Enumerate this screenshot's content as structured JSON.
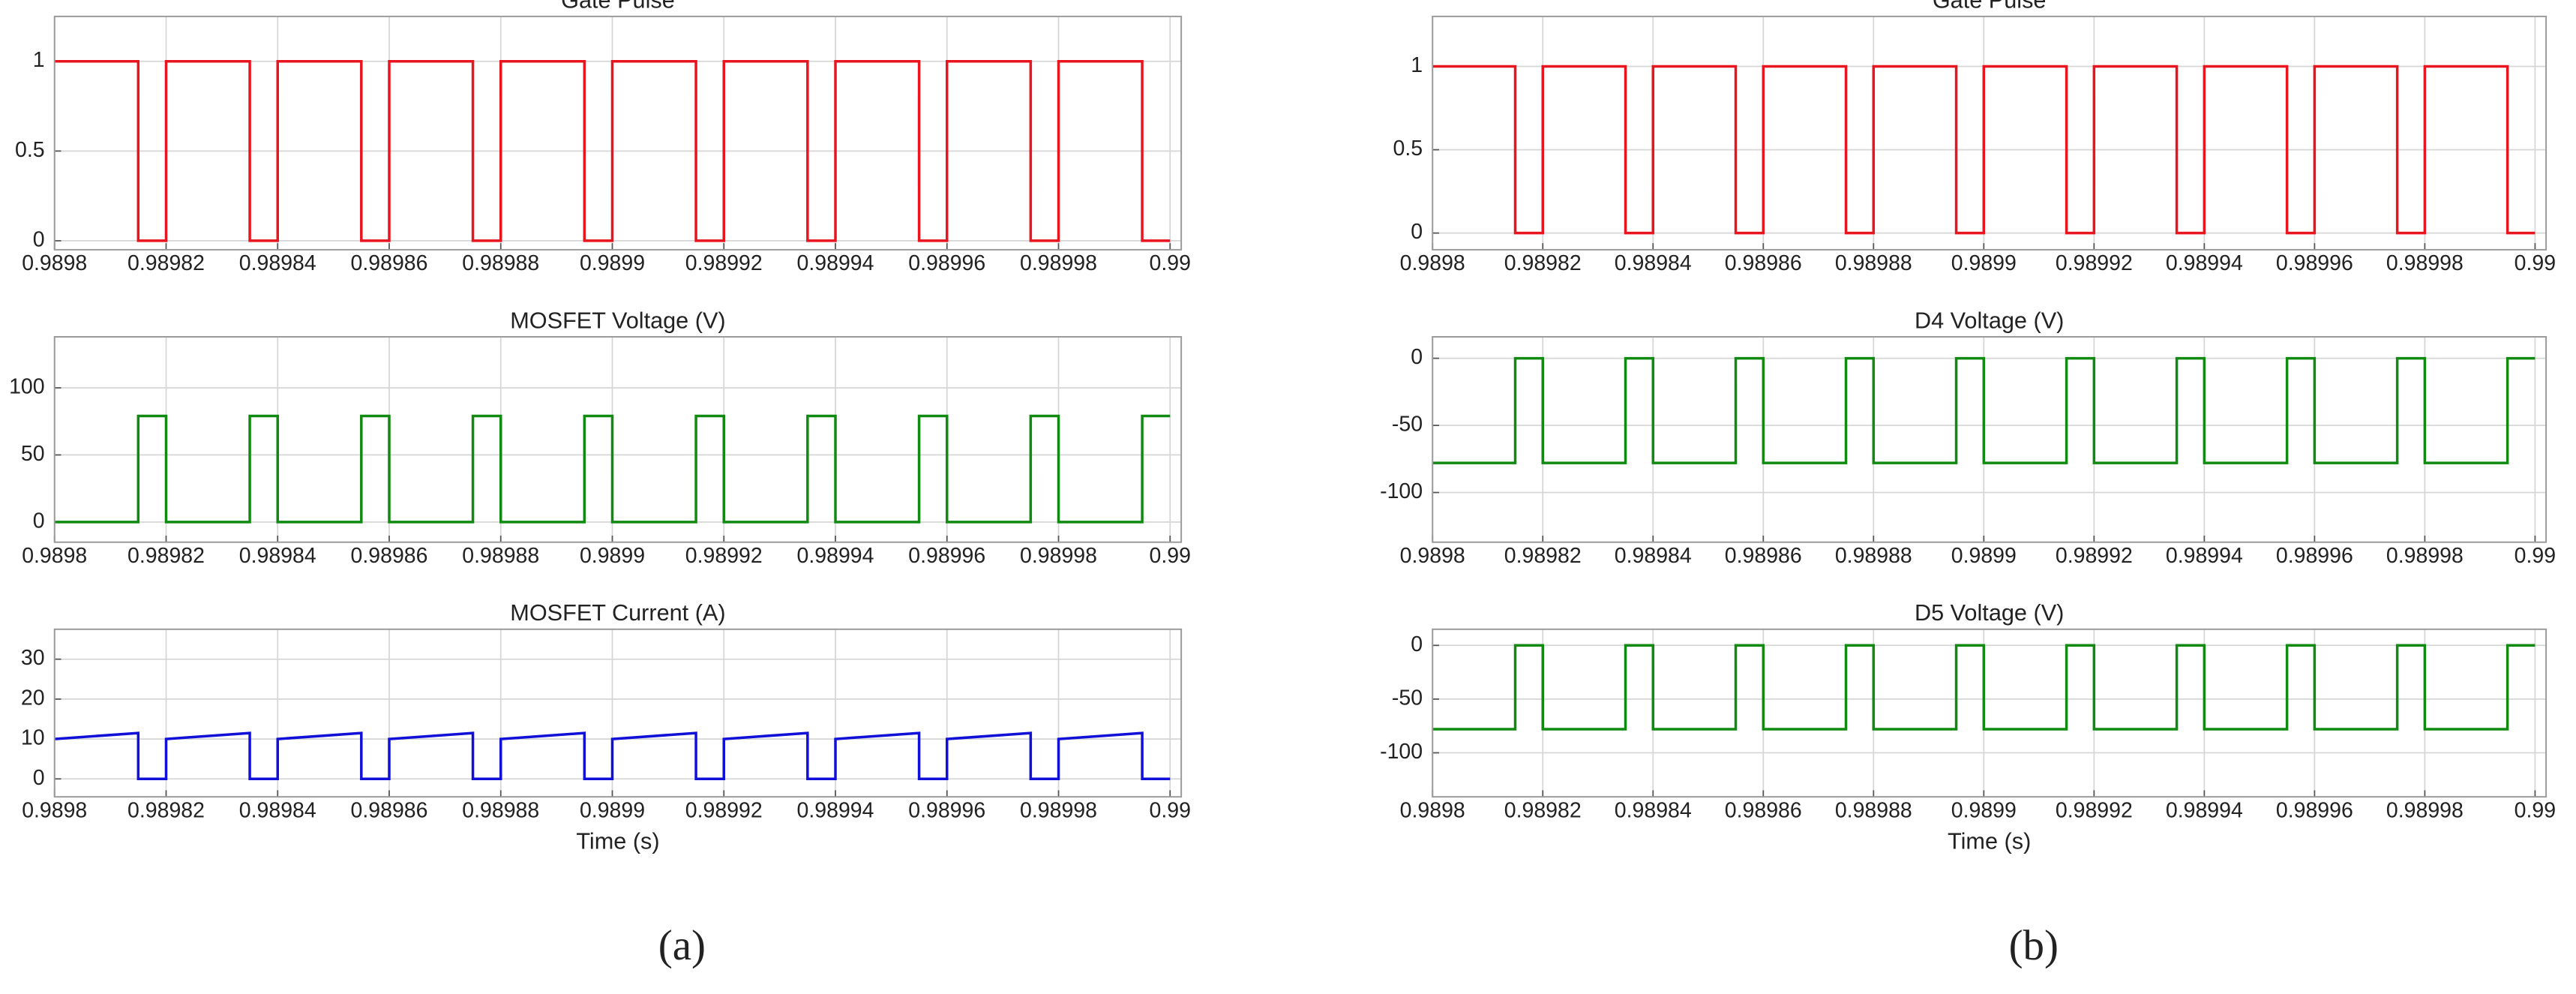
{
  "captions": [
    "(a)",
    "(b)"
  ],
  "chart_data": [
    {
      "type": "line",
      "title": "Gate Pulse",
      "color": "#e8141e",
      "grid": true,
      "x": [
        0.9898,
        0.989815,
        0.989815,
        0.98982,
        0.98982,
        0.989835,
        0.989835,
        0.98984,
        0.98984,
        0.989855,
        0.989855,
        0.98986,
        0.98986,
        0.989875,
        0.989875,
        0.98988,
        0.98988,
        0.989895,
        0.989895,
        0.9899,
        0.9899,
        0.989915,
        0.989915,
        0.98992,
        0.98992,
        0.989935,
        0.989935,
        0.98994,
        0.98994,
        0.989955,
        0.989955,
        0.98996,
        0.98996,
        0.989975,
        0.989975,
        0.98998,
        0.98998,
        0.989995,
        0.989995,
        0.99
      ],
      "values": [
        1,
        1,
        0,
        0,
        1,
        1,
        0,
        0,
        1,
        1,
        0,
        0,
        1,
        1,
        0,
        0,
        1,
        1,
        0,
        0,
        1,
        1,
        0,
        0,
        1,
        1,
        0,
        0,
        1,
        1,
        0,
        0,
        1,
        1,
        0,
        0,
        1,
        1,
        0,
        0
      ],
      "xlim": [
        0.9898,
        0.990002
      ],
      "ylim": [
        -0.05,
        1.25
      ],
      "xticks": [
        0.9898,
        0.98982,
        0.98984,
        0.98986,
        0.98988,
        0.9899,
        0.98992,
        0.98994,
        0.98996,
        0.98998,
        0.99
      ],
      "yticks": [
        0,
        0.5,
        1
      ]
    },
    {
      "type": "line",
      "title": "MOSFET Voltage  (V)",
      "color": "#118a11",
      "grid": true,
      "x": [
        0.9898,
        0.989815,
        0.989815,
        0.98982,
        0.98982,
        0.989835,
        0.989835,
        0.98984,
        0.98984,
        0.989855,
        0.989855,
        0.98986,
        0.98986,
        0.989875,
        0.989875,
        0.98988,
        0.98988,
        0.989895,
        0.989895,
        0.9899,
        0.9899,
        0.989915,
        0.989915,
        0.98992,
        0.98992,
        0.989935,
        0.989935,
        0.98994,
        0.98994,
        0.989955,
        0.989955,
        0.98996,
        0.98996,
        0.989975,
        0.989975,
        0.98998,
        0.98998,
        0.989995,
        0.989995,
        0.99
      ],
      "values": [
        0,
        0,
        79,
        79,
        0,
        0,
        79,
        79,
        0,
        0,
        79,
        79,
        0,
        0,
        79,
        79,
        0,
        0,
        79,
        79,
        0,
        0,
        79,
        79,
        0,
        0,
        79,
        79,
        0,
        0,
        79,
        79,
        0,
        0,
        79,
        79,
        0,
        0,
        79,
        79
      ],
      "xlim": [
        0.9898,
        0.990002
      ],
      "ylim": [
        -15,
        138
      ],
      "xticks": [
        0.9898,
        0.98982,
        0.98984,
        0.98986,
        0.98988,
        0.9899,
        0.98992,
        0.98994,
        0.98996,
        0.98998,
        0.99
      ],
      "yticks": [
        0,
        50,
        100
      ]
    },
    {
      "type": "line",
      "title": "MOSFET Current (A)",
      "xlabel": "Time (s)",
      "color": "#1010d8",
      "grid": true,
      "x": [
        0.9898,
        0.989815,
        0.989815,
        0.98982,
        0.98982,
        0.989835,
        0.989835,
        0.98984,
        0.98984,
        0.989855,
        0.989855,
        0.98986,
        0.98986,
        0.989875,
        0.989875,
        0.98988,
        0.98988,
        0.989895,
        0.989895,
        0.9899,
        0.9899,
        0.989915,
        0.989915,
        0.98992,
        0.98992,
        0.989935,
        0.989935,
        0.98994,
        0.98994,
        0.989955,
        0.989955,
        0.98996,
        0.98996,
        0.989975,
        0.989975,
        0.98998,
        0.98998,
        0.989995,
        0.989995,
        0.99
      ],
      "values": [
        10,
        11.5,
        0,
        0,
        10,
        11.5,
        0,
        0,
        10,
        11.5,
        0,
        0,
        10,
        11.5,
        0,
        0,
        10,
        11.5,
        0,
        0,
        10,
        11.5,
        0,
        0,
        10,
        11.5,
        0,
        0,
        10,
        11.5,
        0,
        0,
        10,
        11.5,
        0,
        0,
        10,
        11.5,
        0,
        0
      ],
      "xlim": [
        0.9898,
        0.990002
      ],
      "ylim": [
        -4.5,
        37.5
      ],
      "xticks": [
        0.9898,
        0.98982,
        0.98984,
        0.98986,
        0.98988,
        0.9899,
        0.98992,
        0.98994,
        0.98996,
        0.98998,
        0.99
      ],
      "yticks": [
        0,
        10,
        20,
        30
      ]
    },
    {
      "type": "line",
      "title": "Gate Pulse",
      "color": "#e8141e",
      "grid": true,
      "x": [
        0.9898,
        0.989815,
        0.989815,
        0.98982,
        0.98982,
        0.989835,
        0.989835,
        0.98984,
        0.98984,
        0.989855,
        0.989855,
        0.98986,
        0.98986,
        0.989875,
        0.989875,
        0.98988,
        0.98988,
        0.989895,
        0.989895,
        0.9899,
        0.9899,
        0.989915,
        0.989915,
        0.98992,
        0.98992,
        0.989935,
        0.989935,
        0.98994,
        0.98994,
        0.989955,
        0.989955,
        0.98996,
        0.98996,
        0.989975,
        0.989975,
        0.98998,
        0.98998,
        0.989995,
        0.989995,
        0.99
      ],
      "values": [
        1,
        1,
        0,
        0,
        1,
        1,
        0,
        0,
        1,
        1,
        0,
        0,
        1,
        1,
        0,
        0,
        1,
        1,
        0,
        0,
        1,
        1,
        0,
        0,
        1,
        1,
        0,
        0,
        1,
        1,
        0,
        0,
        1,
        1,
        0,
        0,
        1,
        1,
        0,
        0
      ],
      "xlim": [
        0.9898,
        0.990002
      ],
      "ylim": [
        -0.1,
        1.3
      ],
      "xticks": [
        0.9898,
        0.98982,
        0.98984,
        0.98986,
        0.98988,
        0.9899,
        0.98992,
        0.98994,
        0.98996,
        0.98998,
        0.99
      ],
      "yticks": [
        0,
        0.5,
        1
      ]
    },
    {
      "type": "line",
      "title": "D4 Voltage (V)",
      "color": "#118a11",
      "grid": true,
      "x": [
        0.9898,
        0.989815,
        0.989815,
        0.98982,
        0.98982,
        0.989835,
        0.989835,
        0.98984,
        0.98984,
        0.989855,
        0.989855,
        0.98986,
        0.98986,
        0.989875,
        0.989875,
        0.98988,
        0.98988,
        0.989895,
        0.989895,
        0.9899,
        0.9899,
        0.989915,
        0.989915,
        0.98992,
        0.98992,
        0.989935,
        0.989935,
        0.98994,
        0.98994,
        0.989955,
        0.989955,
        0.98996,
        0.98996,
        0.989975,
        0.989975,
        0.98998,
        0.98998,
        0.989995,
        0.989995,
        0.99
      ],
      "values": [
        -78,
        -78,
        0,
        0,
        -78,
        -78,
        0,
        0,
        -78,
        -78,
        0,
        0,
        -78,
        -78,
        0,
        0,
        -78,
        -78,
        0,
        0,
        -78,
        -78,
        0,
        0,
        -78,
        -78,
        0,
        0,
        -78,
        -78,
        0,
        0,
        -78,
        -78,
        0,
        0,
        -78,
        -78,
        0,
        0
      ],
      "xlim": [
        0.9898,
        0.990002
      ],
      "ylim": [
        -137,
        16
      ],
      "xticks": [
        0.9898,
        0.98982,
        0.98984,
        0.98986,
        0.98988,
        0.9899,
        0.98992,
        0.98994,
        0.98996,
        0.98998,
        0.99
      ],
      "yticks": [
        -100,
        -50,
        0
      ]
    },
    {
      "type": "line",
      "title": "D5 Voltage (V)",
      "xlabel": "Time (s)",
      "color": "#118a11",
      "grid": true,
      "x": [
        0.9898,
        0.989815,
        0.989815,
        0.98982,
        0.98982,
        0.989835,
        0.989835,
        0.98984,
        0.98984,
        0.989855,
        0.989855,
        0.98986,
        0.98986,
        0.989875,
        0.989875,
        0.98988,
        0.98988,
        0.989895,
        0.989895,
        0.9899,
        0.9899,
        0.989915,
        0.989915,
        0.98992,
        0.98992,
        0.989935,
        0.989935,
        0.98994,
        0.98994,
        0.989955,
        0.989955,
        0.98996,
        0.98996,
        0.989975,
        0.989975,
        0.98998,
        0.98998,
        0.989995,
        0.989995,
        0.99
      ],
      "values": [
        -78,
        -78,
        0,
        0,
        -78,
        -78,
        0,
        0,
        -78,
        -78,
        0,
        0,
        -78,
        -78,
        0,
        0,
        -78,
        -78,
        0,
        0,
        -78,
        -78,
        0,
        0,
        -78,
        -78,
        0,
        0,
        -78,
        -78,
        0,
        0,
        -78,
        -78,
        0,
        0,
        -78,
        -78,
        0,
        0
      ],
      "xlim": [
        0.9898,
        0.990002
      ],
      "ylim": [
        -141,
        15
      ],
      "xticks": [
        0.9898,
        0.98982,
        0.98984,
        0.98986,
        0.98988,
        0.9899,
        0.98992,
        0.98994,
        0.98996,
        0.98998,
        0.99
      ],
      "yticks": [
        -100,
        -50,
        0
      ]
    }
  ]
}
